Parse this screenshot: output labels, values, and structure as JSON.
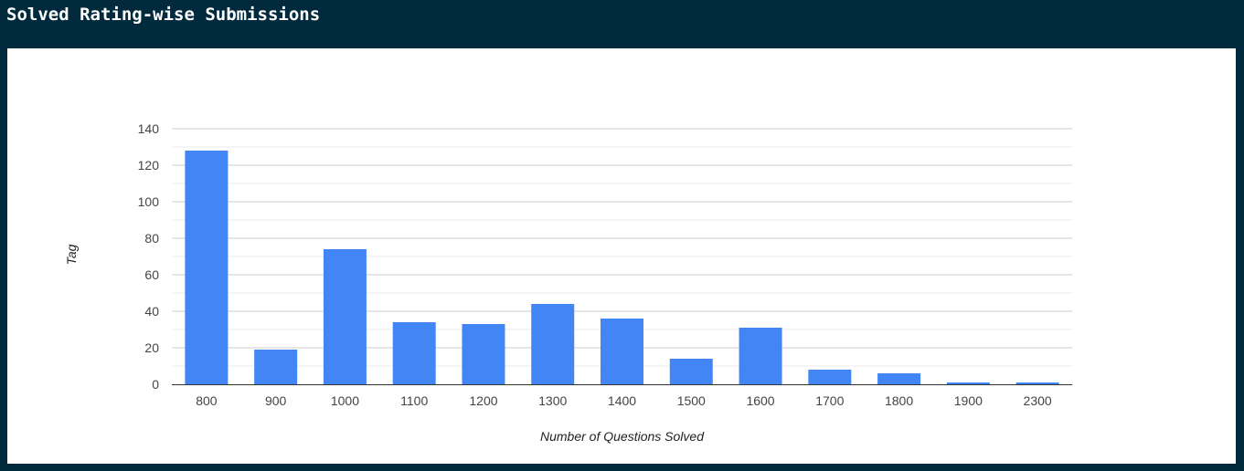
{
  "header": {
    "title": "Solved Rating-wise Submissions"
  },
  "colors": {
    "background": "#012a3c",
    "panel": "#ffffff",
    "bar": "#4285f4",
    "grid_major": "#cccccc",
    "grid_minor": "#ebebeb",
    "axis_text": "#444444"
  },
  "chart_data": {
    "type": "bar",
    "title": "",
    "xlabel": "Number of Questions Solved",
    "ylabel": "Tag",
    "categories": [
      "800",
      "900",
      "1000",
      "1100",
      "1200",
      "1300",
      "1400",
      "1500",
      "1600",
      "1700",
      "1800",
      "1900",
      "2300"
    ],
    "values": [
      128,
      19,
      74,
      34,
      33,
      44,
      36,
      14,
      31,
      8,
      6,
      1,
      1
    ],
    "ylim": [
      0,
      140
    ],
    "yticks": [
      "0",
      "20",
      "40",
      "60",
      "80",
      "100",
      "120",
      "140"
    ],
    "grid": true,
    "legend": "none"
  }
}
